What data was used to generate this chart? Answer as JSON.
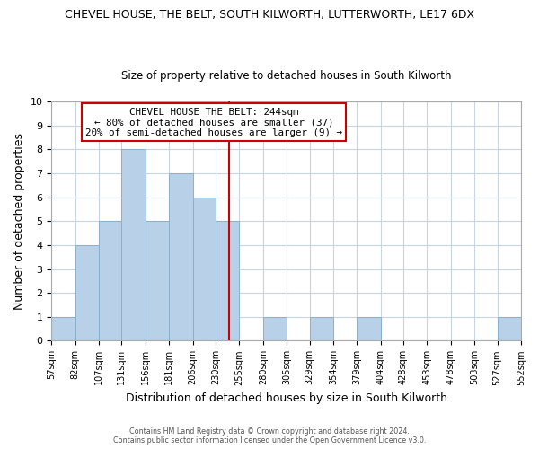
{
  "title": "CHEVEL HOUSE, THE BELT, SOUTH KILWORTH, LUTTERWORTH, LE17 6DX",
  "subtitle": "Size of property relative to detached houses in South Kilworth",
  "xlabel": "Distribution of detached houses by size in South Kilworth",
  "ylabel": "Number of detached properties",
  "bin_edges": [
    57,
    82,
    107,
    131,
    156,
    181,
    206,
    230,
    255,
    280,
    305,
    329,
    354,
    379,
    404,
    428,
    453,
    478,
    503,
    527,
    552
  ],
  "counts": [
    1,
    4,
    5,
    8,
    5,
    7,
    6,
    5,
    0,
    1,
    0,
    1,
    0,
    1,
    0,
    0,
    0,
    0,
    0,
    1
  ],
  "bar_color": "#b8d0e8",
  "bar_edge_color": "#8ab0cc",
  "vline_x": 244,
  "vline_color": "#cc0000",
  "ylim": [
    0,
    10
  ],
  "yticks": [
    0,
    1,
    2,
    3,
    4,
    5,
    6,
    7,
    8,
    9,
    10
  ],
  "annotation_title": "CHEVEL HOUSE THE BELT: 244sqm",
  "annotation_line1": "← 80% of detached houses are smaller (37)",
  "annotation_line2": "20% of semi-detached houses are larger (9) →",
  "annotation_box_color": "#ffffff",
  "annotation_box_edge_color": "#cc0000",
  "footer_line1": "Contains HM Land Registry data © Crown copyright and database right 2024.",
  "footer_line2": "Contains public sector information licensed under the Open Government Licence v3.0.",
  "tick_labels": [
    "57sqm",
    "82sqm",
    "107sqm",
    "131sqm",
    "156sqm",
    "181sqm",
    "206sqm",
    "230sqm",
    "255sqm",
    "280sqm",
    "305sqm",
    "329sqm",
    "354sqm",
    "379sqm",
    "404sqm",
    "428sqm",
    "453sqm",
    "478sqm",
    "503sqm",
    "527sqm",
    "552sqm"
  ],
  "grid_color": "#c8d4e0",
  "bg_color": "#ffffff",
  "title_fontsize": 9,
  "subtitle_fontsize": 8.5,
  "ylabel_fontsize": 9,
  "xlabel_fontsize": 9,
  "ytick_fontsize": 8,
  "xtick_fontsize": 7
}
